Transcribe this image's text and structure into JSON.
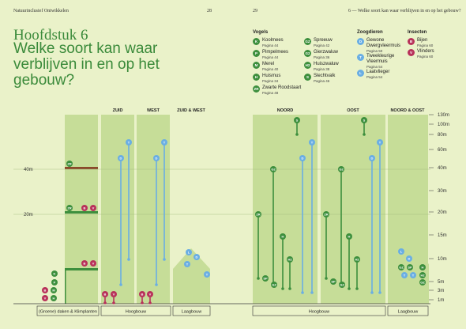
{
  "header": {
    "left": "Natuurinclusief Ontwikkelen",
    "page_left": "28",
    "page_right": "29",
    "right": "6 — Welke soort kan waar verblijven in en op het gebouw?"
  },
  "title": {
    "chapter": "Hoofdstuk 6",
    "heading": "Welke soort kan waar verblijven in en op het gebouw?"
  },
  "legend": {
    "birds_title": "Vogels",
    "birds": [
      {
        "code": "K",
        "name": "Koolmees",
        "page": "Pagina 44"
      },
      {
        "code": "P",
        "name": "Pimpelmees",
        "page": "Pagina 44"
      },
      {
        "code": "M",
        "name": "Merel",
        "page": "Pagina 40"
      },
      {
        "code": "H",
        "name": "Huismus",
        "page": "Pagina 34"
      },
      {
        "code": "ZR",
        "name": "Zwarte Roodstaart",
        "page": "Pagina 48"
      },
      {
        "code": "GZ",
        "name": "Spreeuw",
        "page": "Pagina 42"
      },
      {
        "code": "G2",
        "name": "Gierzwaluw",
        "page": "Pagina 36"
      },
      {
        "code": "H2",
        "name": "Huiszwaluw",
        "page": "Pagina 38"
      },
      {
        "code": "S",
        "name": "Slechtvalk",
        "page": "Pagina 46"
      }
    ],
    "mammals_title": "Zoogdieren",
    "mammals": [
      {
        "code": "D",
        "name": "Gewone Dwergvleermuis",
        "page": "Pagina 50"
      },
      {
        "code": "T",
        "name": "Tweekleurige Vleermuis",
        "page": "Pagina 54"
      },
      {
        "code": "L",
        "name": "Laatvlieger",
        "page": "Pagina 54"
      }
    ],
    "insects_title": "Insecten",
    "insects": [
      {
        "code": "B",
        "name": "Bijen",
        "page": "Pagina 60"
      },
      {
        "code": "V",
        "name": "Vlinders",
        "page": "Pagina 60"
      }
    ]
  },
  "colors": {
    "bird": "#3d8f3d",
    "mammal": "#6aaee3",
    "insect": "#b8325a",
    "band": "#c6dd98",
    "dark_band": "#b7d282"
  },
  "sections": {
    "zuid": "ZUID",
    "west": "WEST",
    "zuid_west": "ZUID & WEST",
    "noord": "NOORD",
    "oost": "OOST",
    "noord_oost": "NOORD & OOST"
  },
  "bottom_labels": {
    "roofs": "(Groene) daken & Klimplanten",
    "hoog1": "Hoogbouw",
    "laag1": "Laagbouw",
    "hoog2": "Hoogbouw",
    "laag2": "Laagbouw"
  },
  "left_axis": [
    "40m",
    "20m"
  ],
  "right_axis": [
    "130m",
    "100m",
    "80m",
    "60m",
    "40m",
    "30m",
    "20m",
    "15m",
    "10m",
    "5m",
    "3m",
    "1m"
  ]
}
